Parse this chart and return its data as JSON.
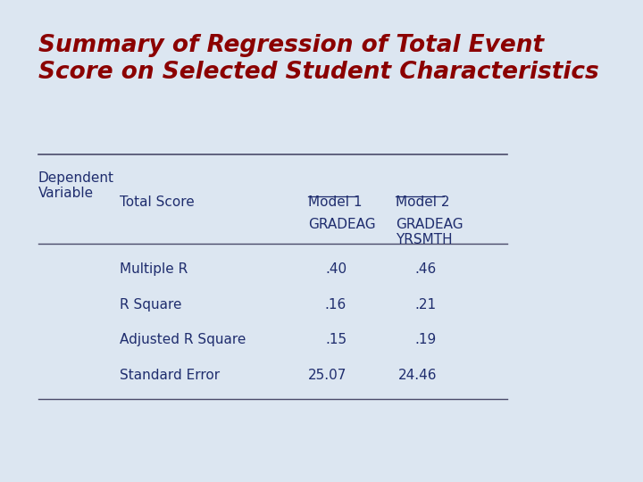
{
  "title_line1": "Summary of Regression of Total Event",
  "title_line2": "Score on Selected Student Characteristics",
  "title_color": "#8B0000",
  "background_color": "#dce6f1",
  "table_text_color": "#1F2D6E",
  "dep_var_label": "Dependent\nVariable",
  "total_score_label": "Total Score",
  "model1_label": "Model 1",
  "model1_sub": "GRADEAG",
  "model2_label": "Model 2",
  "model2_sub": "GRADEAG\nYRSMTH",
  "rows": [
    {
      "label": "Multiple R",
      "m1": ".40",
      "m2": ".46"
    },
    {
      "label": "R Square",
      "m1": ".16",
      "m2": ".21"
    },
    {
      "label": "Adjusted R Square",
      "m1": ".15",
      "m2": ".19"
    },
    {
      "label": "Standard Error",
      "m1": "25.07",
      "m2": "24.46"
    }
  ]
}
